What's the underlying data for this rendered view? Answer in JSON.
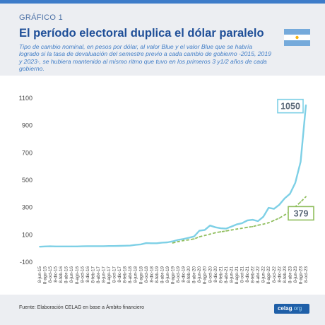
{
  "header": {
    "kicker": "GRÁFICO 1",
    "title": "El período electoral duplica el dólar paralelo",
    "subtitle": "Tipo de cambio nominal, en pesos por dólar, al valor Blue y el valor Blue que se habría logrado si la tasa de devaluación del semestre previo a cada cambio de gobierno -2015, 2019 y 2023-, se hubiera mantenido al mismo ritmo que tuvo en los primeros 3 y1/2 años de cada gobierno."
  },
  "footer": {
    "source": "Fuente: Elaboración CELAG en base a Ámbito financiero",
    "logo_main": "celag",
    "logo_suffix": ".org"
  },
  "colors": {
    "blue_series": "#7ed0e6",
    "simulated_series": "#8fbe5d",
    "title": "#1f4f98",
    "header_bg": "#eceef2",
    "accent": "#3d7cc9"
  },
  "chart_data": {
    "type": "line",
    "ylim": [
      -100,
      1100
    ],
    "yticks": [
      -100,
      100,
      300,
      500,
      700,
      900,
      1100
    ],
    "x": [
      "8-jun-15",
      "8-ago-15",
      "8-oct-15",
      "8-dic-15",
      "8-feb-16",
      "8-abr-16",
      "8-jun-16",
      "8-ago-16",
      "8-oct-16",
      "8-dic-16",
      "8-feb-17",
      "8-abr-17",
      "8-jun-17",
      "8-ago-17",
      "8-oct-17",
      "8-dic-17",
      "8-feb-18",
      "8-abr-18",
      "8-jun-18",
      "8-ago-18",
      "8-oct-18",
      "8-dic-18",
      "8-feb-19",
      "8-abr-19",
      "8-jun-19",
      "8-ago-19",
      "8-oct-19",
      "8-dic-19",
      "8-feb-20",
      "8-abr-20",
      "8-jun-20",
      "8-ago-20",
      "8-oct-20",
      "8-dic-20",
      "8-feb-21",
      "8-abr-21",
      "8-jun-21",
      "8-ago-21",
      "8-oct-21",
      "8-dic-21",
      "8-feb-22",
      "8-abr-22",
      "8-jun-22",
      "8-ago-22",
      "8-oct-22",
      "8-dic-22",
      "8-feb-23",
      "8-abr-23",
      "8-jun-23",
      "8-ago-23",
      "8-oct-23"
    ],
    "series": [
      {
        "values": [
          13,
          15,
          16,
          15,
          15,
          15,
          15,
          15,
          16,
          17,
          17,
          17,
          17,
          18,
          18,
          19,
          20,
          21,
          26,
          30,
          39,
          38,
          38,
          43,
          45,
          52,
          63,
          69,
          78,
          88,
          130,
          135,
          168,
          155,
          148,
          145,
          160,
          176,
          185,
          205,
          210,
          200,
          232,
          298,
          290,
          320,
          366,
          400,
          480,
          635,
          1050
        ]
      },
      {
        "values": [
          null,
          null,
          null,
          null,
          null,
          null,
          null,
          null,
          null,
          null,
          null,
          null,
          null,
          null,
          null,
          null,
          null,
          null,
          null,
          null,
          null,
          null,
          null,
          null,
          null,
          40,
          50,
          58,
          63,
          70,
          85,
          95,
          105,
          115,
          122,
          128,
          135,
          142,
          148,
          155,
          160,
          170,
          178,
          188,
          205,
          222,
          245,
          270,
          305,
          340,
          379
        ]
      }
    ],
    "annotations": [
      {
        "label": "1050",
        "series": 0,
        "point": 50
      },
      {
        "label": "379",
        "series": 1,
        "point": 50
      }
    ]
  }
}
